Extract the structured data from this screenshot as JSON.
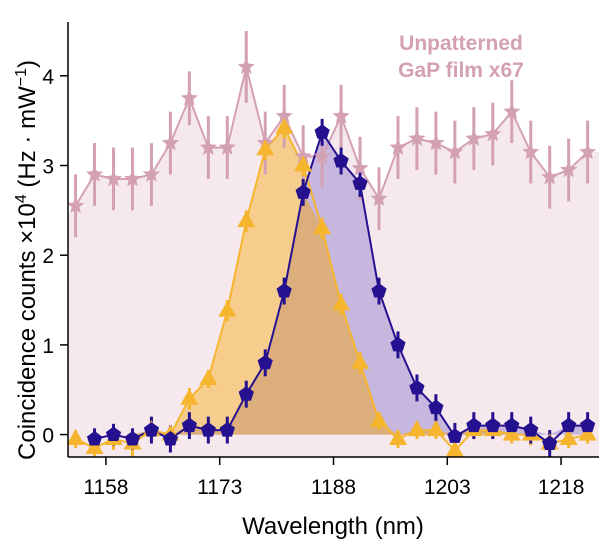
{
  "chart_data": {
    "type": "line",
    "xlabel": "Wavelength (nm)",
    "ylabel_main": "Coincidence counts ×10",
    "ylabel_exp": "4",
    "ylabel_unit": " (Hz · mW",
    "ylabel_unit_exp": "−1",
    "ylabel_close": ")",
    "annotation_line1": "Unpatterned",
    "annotation_line2": "GaP  film x67",
    "xlim": [
      1153,
      1223
    ],
    "ylim": [
      -0.25,
      4.6
    ],
    "xticks": [
      1158,
      1173,
      1188,
      1203,
      1218
    ],
    "xtick_labels": [
      "1158",
      "1173",
      "1188",
      "1203",
      "1218"
    ],
    "yticks": [
      0,
      1,
      2,
      3,
      4
    ],
    "ytick_labels": [
      "0",
      "1",
      "2",
      "3",
      "4"
    ],
    "colors": {
      "film": "#d4a0b3",
      "film_fill": "#f6e9ed",
      "orange": "#f5b52e",
      "orange_fill": "#f6cd8c",
      "purple": "#25118f",
      "purple_fill": "#c7b6de",
      "overlap_fill": "#dcae7c"
    },
    "series": [
      {
        "marker": "star",
        "color": "#d4a0b3",
        "x": [
          1154,
          1156.5,
          1159,
          1161.5,
          1164,
          1166.5,
          1169,
          1171.5,
          1174,
          1176.5,
          1179,
          1181.5,
          1184,
          1186.5,
          1189,
          1191.5,
          1194,
          1196.5,
          1199,
          1201.5,
          1204,
          1206.5,
          1209,
          1211.5,
          1214,
          1216.5,
          1219,
          1221.5
        ],
        "y": [
          2.55,
          2.9,
          2.85,
          2.85,
          2.9,
          3.25,
          3.75,
          3.2,
          3.2,
          4.1,
          3.25,
          3.55,
          3.1,
          3.1,
          3.55,
          2.97,
          2.63,
          3.2,
          3.3,
          3.25,
          3.15,
          3.3,
          3.35,
          3.6,
          3.15,
          2.87,
          2.95,
          3.15
        ],
        "err": [
          0.35,
          0.35,
          0.35,
          0.35,
          0.35,
          0.35,
          0.3,
          0.35,
          0.35,
          0.4,
          0.35,
          0.35,
          0.35,
          0.35,
          0.35,
          0.35,
          0.35,
          0.35,
          0.35,
          0.35,
          0.35,
          0.35,
          0.35,
          0.35,
          0.35,
          0.35,
          0.35,
          0.35
        ]
      },
      {
        "marker": "triangle",
        "color": "#f5b52e",
        "x": [
          1154,
          1156.5,
          1159,
          1161.5,
          1164,
          1166.5,
          1169,
          1171.5,
          1174,
          1176.5,
          1179,
          1181.5,
          1184,
          1186.5,
          1189,
          1191.5,
          1194,
          1196.5,
          1199,
          1201.5,
          1204,
          1206.5,
          1209,
          1211.5,
          1214,
          1216.5,
          1219,
          1221.5
        ],
        "y": [
          -0.05,
          -0.15,
          -0.05,
          -0.1,
          0.05,
          0,
          0.4,
          0.62,
          1.38,
          2.38,
          3.18,
          3.42,
          3.0,
          2.3,
          1.45,
          0.8,
          0.15,
          -0.05,
          0.05,
          0.05,
          -0.18,
          0.05,
          0.05,
          0,
          0,
          -0.1,
          -0.05,
          0
        ],
        "err": [
          0.1,
          0.12,
          0.12,
          0.15,
          0.12,
          0.1,
          0.12,
          0.1,
          0.12,
          0.12,
          0.12,
          0.12,
          0.12,
          0.12,
          0.12,
          0.12,
          0.1,
          0.1,
          0.1,
          0.1,
          0.1,
          0.1,
          0.1,
          0.1,
          0.12,
          0.1,
          0.1,
          0.1
        ]
      },
      {
        "marker": "pentagon",
        "color": "#25118f",
        "x": [
          1156.5,
          1159,
          1161.5,
          1164,
          1166.5,
          1169,
          1171.5,
          1174,
          1176.5,
          1179,
          1181.5,
          1184,
          1186.5,
          1189,
          1191.5,
          1194,
          1196.5,
          1199,
          1201.5,
          1204,
          1206.5,
          1209,
          1211.5,
          1214,
          1216.5,
          1219,
          1221.5
        ],
        "y": [
          -0.05,
          0,
          -0.05,
          0.05,
          -0.05,
          0.1,
          0.05,
          0.05,
          0.45,
          0.8,
          1.6,
          2.7,
          3.37,
          3.05,
          2.8,
          1.6,
          1.0,
          0.52,
          0.3,
          -0.02,
          0.1,
          0.1,
          0.1,
          0.05,
          -0.1,
          0.1,
          0.1
        ],
        "err": [
          0.12,
          0.12,
          0.12,
          0.15,
          0.15,
          0.15,
          0.15,
          0.15,
          0.15,
          0.15,
          0.15,
          0.15,
          0.15,
          0.15,
          0.15,
          0.15,
          0.15,
          0.15,
          0.15,
          0.15,
          0.15,
          0.15,
          0.15,
          0.15,
          0.15,
          0.15,
          0.15
        ]
      }
    ]
  }
}
